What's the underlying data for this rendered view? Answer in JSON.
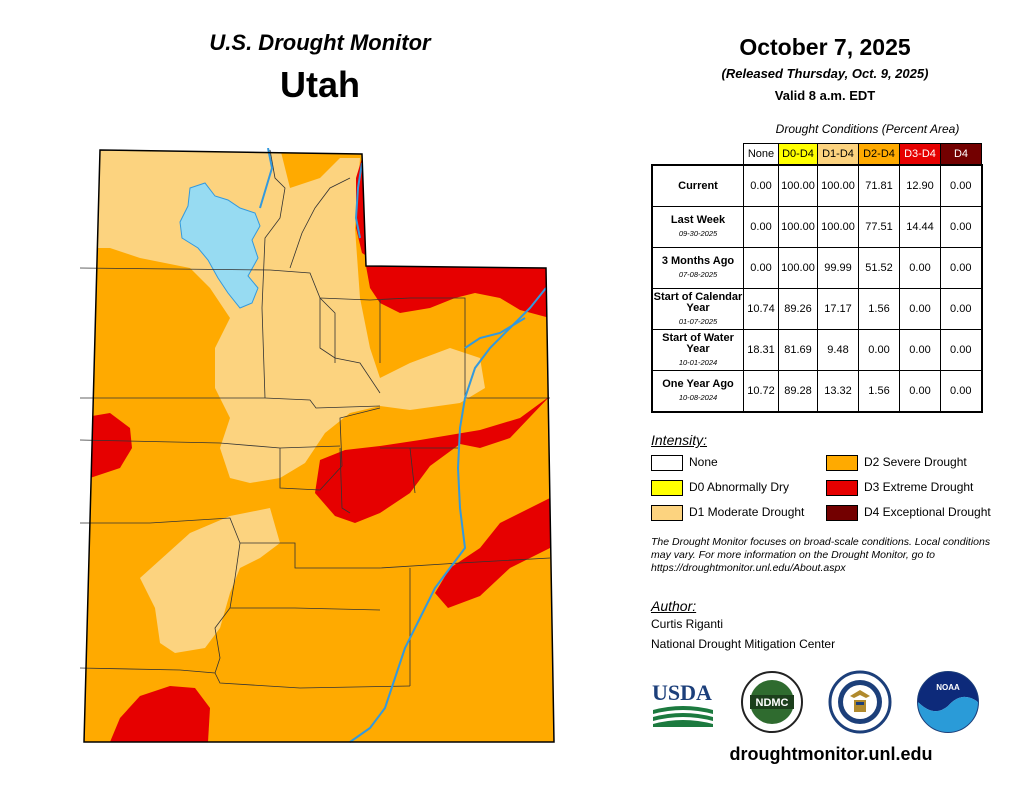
{
  "header": {
    "title": "U.S. Drought Monitor",
    "state": "Utah"
  },
  "date": {
    "title": "October 7, 2025",
    "released": "(Released Thursday, Oct. 9, 2025)",
    "valid": "Valid 8 a.m. EDT"
  },
  "table": {
    "caption": "Drought Conditions (Percent Area)",
    "columns": [
      {
        "label": "None",
        "color": "#ffffff",
        "text_color": "#000000"
      },
      {
        "label": "D0-D4",
        "color": "#ffff00",
        "text_color": "#000000"
      },
      {
        "label": "D1-D4",
        "color": "#fcd37f",
        "text_color": "#000000"
      },
      {
        "label": "D2-D4",
        "color": "#ffaa00",
        "text_color": "#000000"
      },
      {
        "label": "D3-D4",
        "color": "#e60000",
        "text_color": "#ffffff"
      },
      {
        "label": "D4",
        "color": "#730000",
        "text_color": "#ffffff"
      }
    ],
    "rows": [
      {
        "label": "Current",
        "date": "",
        "values": [
          "0.00",
          "100.00",
          "100.00",
          "71.81",
          "12.90",
          "0.00"
        ]
      },
      {
        "label": "Last Week",
        "date": "09-30-2025",
        "values": [
          "0.00",
          "100.00",
          "100.00",
          "77.51",
          "14.44",
          "0.00"
        ]
      },
      {
        "label": "3 Months Ago",
        "date": "07-08-2025",
        "values": [
          "0.00",
          "100.00",
          "99.99",
          "51.52",
          "0.00",
          "0.00"
        ]
      },
      {
        "label": "Start of Calendar Year",
        "date": "01-07-2025",
        "values": [
          "10.74",
          "89.26",
          "17.17",
          "1.56",
          "0.00",
          "0.00"
        ]
      },
      {
        "label": "Start of Water Year",
        "date": "10-01-2024",
        "values": [
          "18.31",
          "81.69",
          "9.48",
          "0.00",
          "0.00",
          "0.00"
        ]
      },
      {
        "label": "One Year Ago",
        "date": "10-08-2024",
        "values": [
          "10.72",
          "89.28",
          "13.32",
          "1.56",
          "0.00",
          "0.00"
        ]
      }
    ]
  },
  "legend": {
    "title": "Intensity:",
    "items": [
      {
        "label": "None",
        "color": "#ffffff"
      },
      {
        "label": "D0 Abnormally Dry",
        "color": "#ffff00"
      },
      {
        "label": "D1 Moderate Drought",
        "color": "#fcd37f"
      },
      {
        "label": "D2 Severe Drought",
        "color": "#ffaa00"
      },
      {
        "label": "D3 Extreme Drought",
        "color": "#e60000"
      },
      {
        "label": "D4 Exceptional Drought",
        "color": "#730000"
      }
    ]
  },
  "note": "The Drought Monitor focuses on broad-scale conditions. Local conditions may vary. For more information on the Drought Monitor, go to https://droughtmonitor.unl.edu/About.aspx",
  "author": {
    "heading": "Author:",
    "name": "Curtis Riganti",
    "org": "National Drought Mitigation Center"
  },
  "logos": {
    "usda": "USDA",
    "ndmc": "NDMC",
    "noaa": "NOAA"
  },
  "map_colors": {
    "lake": "#97dbf2",
    "river": "#3399dd"
  },
  "website": "droughtmonitor.unl.edu"
}
